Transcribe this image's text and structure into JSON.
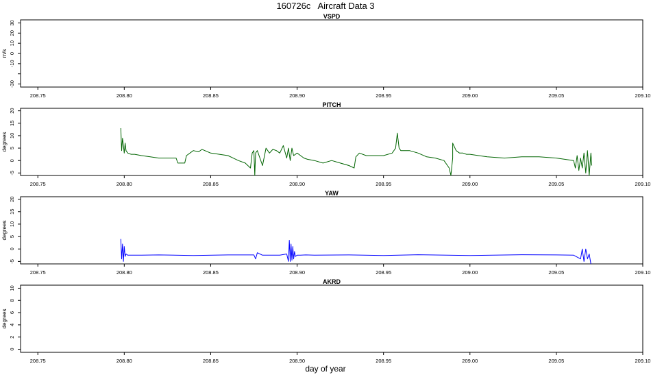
{
  "figure": {
    "title": "160726c   Aircraft Data 3",
    "xlabel": "day of year"
  },
  "chart_data": [
    {
      "type": "line",
      "title": "VSPD",
      "ylabel": "m/s",
      "xlim": [
        208.74,
        209.1
      ],
      "ylim": [
        -33,
        33
      ],
      "xticks": [
        "208.75",
        "208.80",
        "208.85",
        "208.90",
        "208.95",
        "209.00",
        "209.05",
        "209.10"
      ],
      "yticks": [
        "-30",
        "",
        "-10",
        "0",
        "10",
        "20",
        "30"
      ],
      "ytick_values": [
        -30,
        -20,
        -10,
        0,
        10,
        20,
        30
      ],
      "color": "#006400",
      "x": [],
      "y": []
    },
    {
      "type": "line",
      "title": "PITCH",
      "ylabel": "degrees",
      "xlim": [
        208.74,
        209.1
      ],
      "ylim": [
        -6,
        21
      ],
      "xticks": [
        "208.75",
        "208.80",
        "208.85",
        "208.90",
        "208.95",
        "209.00",
        "209.05",
        "209.10"
      ],
      "yticks": [
        "-5",
        "0",
        "5",
        "10",
        "15",
        "20"
      ],
      "ytick_values": [
        -5,
        0,
        5,
        10,
        15,
        20
      ],
      "color": "#006400",
      "x": [
        208.798,
        208.7985,
        208.799,
        208.7995,
        208.8,
        208.8005,
        208.801,
        208.802,
        208.804,
        208.806,
        208.81,
        208.815,
        208.82,
        208.83,
        208.831,
        208.835,
        208.836,
        208.84,
        208.843,
        208.845,
        208.85,
        208.855,
        208.86,
        208.863,
        208.866,
        208.87,
        208.873,
        208.874,
        208.875,
        208.8755,
        208.876,
        208.877,
        208.88,
        208.882,
        208.883,
        208.884,
        208.886,
        208.888,
        208.89,
        208.892,
        208.894,
        208.895,
        208.896,
        208.897,
        208.898,
        208.9,
        208.902,
        208.904,
        208.906,
        208.91,
        208.915,
        208.92,
        208.925,
        208.93,
        208.933,
        208.934,
        208.936,
        208.94,
        208.945,
        208.95,
        208.955,
        208.957,
        208.958,
        208.959,
        208.96,
        208.962,
        208.965,
        208.97,
        208.975,
        208.98,
        208.985,
        208.987,
        208.988,
        208.989,
        208.99,
        208.99,
        208.992,
        208.994,
        208.996,
        208.998,
        209.0,
        209.005,
        209.01,
        209.02,
        209.03,
        209.04,
        209.05,
        209.06,
        209.061,
        209.062,
        209.063,
        209.064,
        209.065,
        209.066,
        209.067,
        209.068,
        209.069,
        209.07,
        209.0705
      ],
      "y": [
        13,
        4,
        9,
        6,
        3,
        7,
        4,
        3,
        2.5,
        2.5,
        2,
        1.5,
        1,
        1,
        -1,
        -1,
        2,
        4,
        3.5,
        4.5,
        3,
        2.5,
        2,
        1,
        0,
        -1,
        -3,
        3,
        4,
        -6,
        3,
        4,
        -2,
        5,
        4,
        3,
        4.5,
        4,
        3,
        6,
        1,
        5,
        0,
        5,
        2,
        3,
        2,
        1,
        0.5,
        0,
        -1,
        0,
        -1,
        -2,
        -3,
        1.5,
        3,
        2,
        2,
        2,
        3,
        5,
        11,
        5,
        4,
        4,
        4,
        3,
        1.5,
        1,
        0,
        -2,
        -3,
        -6,
        1,
        7,
        4,
        3,
        3,
        2.5,
        2.5,
        2,
        1.5,
        1,
        1.5,
        1.5,
        1,
        0,
        -3,
        2,
        -4,
        1,
        -3,
        3,
        -5,
        4,
        -6,
        3,
        -2
      ]
    },
    {
      "type": "line",
      "title": "YAW",
      "ylabel": "degrees",
      "xlim": [
        208.74,
        209.1
      ],
      "ylim": [
        -6,
        21
      ],
      "xticks": [
        "208.75",
        "208.80",
        "208.85",
        "208.90",
        "208.95",
        "209.00",
        "209.05",
        "209.10"
      ],
      "yticks": [
        "-5",
        "0",
        "5",
        "10",
        "15",
        "20"
      ],
      "ytick_values": [
        -5,
        0,
        5,
        10,
        15,
        20
      ],
      "color": "#0000ff",
      "x": [
        208.798,
        208.7985,
        208.799,
        208.7995,
        208.8,
        208.8005,
        208.801,
        208.802,
        208.805,
        208.81,
        208.82,
        208.84,
        208.86,
        208.875,
        208.876,
        208.877,
        208.88,
        208.89,
        208.894,
        208.895,
        208.8955,
        208.896,
        208.8965,
        208.897,
        208.8975,
        208.898,
        208.8985,
        208.899,
        208.9,
        208.902,
        208.905,
        208.91,
        208.93,
        208.95,
        208.97,
        209.0,
        209.03,
        209.05,
        209.06,
        209.064,
        209.065,
        209.066,
        209.067,
        209.068,
        209.069,
        209.07
      ],
      "y": [
        4,
        -4,
        2,
        -5,
        1,
        -3,
        -2,
        -2.5,
        -2.5,
        -2.5,
        -2.4,
        -2.6,
        -2.4,
        -2.4,
        -4,
        -1.5,
        -2.5,
        -2.5,
        -2,
        -5,
        3.5,
        -5,
        2,
        -4.5,
        1,
        -4,
        -1,
        -3,
        -2.5,
        -2.5,
        -2.4,
        -2.5,
        -2.4,
        -2.6,
        -2.3,
        -2.6,
        -2.3,
        -2.4,
        -2.5,
        -4,
        0,
        -5,
        0,
        -4,
        -2,
        -6
      ]
    },
    {
      "type": "line",
      "title": "AKRD",
      "ylabel": "degrees",
      "xlim": [
        208.74,
        209.1
      ],
      "ylim": [
        -0.5,
        10.5
      ],
      "xticks": [
        "208.75",
        "208.80",
        "208.85",
        "208.90",
        "208.95",
        "209.00",
        "209.05",
        "209.10"
      ],
      "yticks": [
        "0",
        "2",
        "4",
        "6",
        "8",
        "10"
      ],
      "ytick_values": [
        0,
        2,
        4,
        6,
        8,
        10
      ],
      "color": "#006400",
      "x": [],
      "y": []
    }
  ]
}
